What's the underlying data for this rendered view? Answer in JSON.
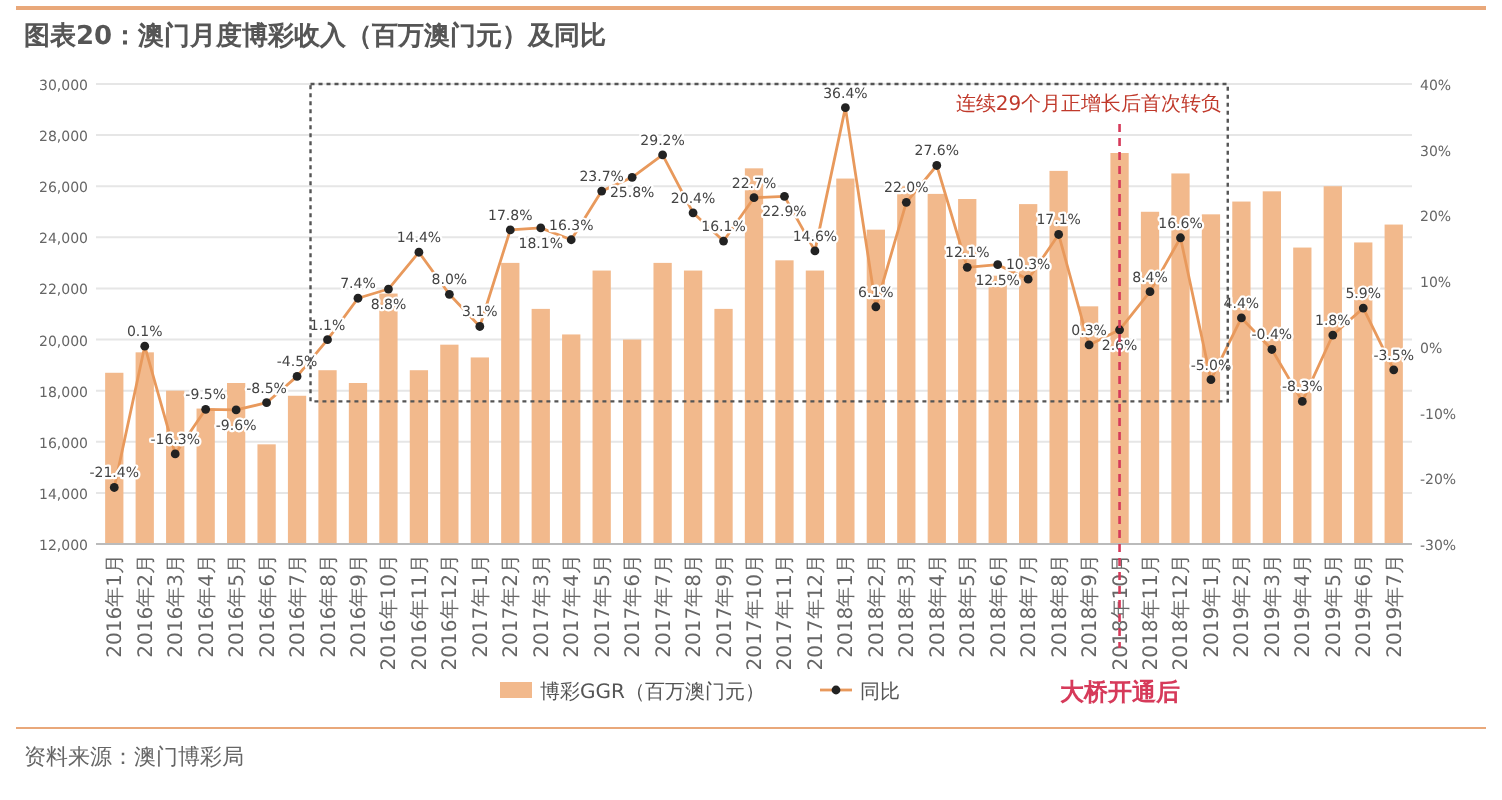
{
  "chart_data": {
    "type": "bar",
    "title": "图表20：澳门月度博彩收入（百万澳门元）及同比",
    "categories": [
      "2016年1月",
      "2016年2月",
      "2016年3月",
      "2016年4月",
      "2016年5月",
      "2016年6月",
      "2016年7月",
      "2016年8月",
      "2016年9月",
      "2016年10月",
      "2016年11月",
      "2016年12月",
      "2017年1月",
      "2017年2月",
      "2017年3月",
      "2017年4月",
      "2017年5月",
      "2017年6月",
      "2017年7月",
      "2017年8月",
      "2017年9月",
      "2017年10月",
      "2017年11月",
      "2017年12月",
      "2018年1月",
      "2018年2月",
      "2018年3月",
      "2018年4月",
      "2018年5月",
      "2018年6月",
      "2018年7月",
      "2018年8月",
      "2018年9月",
      "2018年10月",
      "2018年11月",
      "2018年12月",
      "2019年1月",
      "2019年2月",
      "2019年3月",
      "2019年4月",
      "2019年5月",
      "2019年6月",
      "2019年7月"
    ],
    "series": [
      {
        "name": "博彩GGR（百万澳门元）",
        "color": "#f2b98c",
        "values": [
          18700,
          19500,
          18000,
          17300,
          18300,
          15900,
          17800,
          18800,
          18300,
          21800,
          18800,
          19800,
          19300,
          23000,
          21200,
          20200,
          22700,
          20000,
          23000,
          22700,
          21200,
          26700,
          23100,
          22700,
          26300,
          24300,
          26000,
          25700,
          25500,
          22500,
          25300,
          26600,
          21300,
          27300,
          25000,
          26500,
          24900,
          25400,
          25800,
          23600,
          26000,
          23800,
          24500
        ]
      },
      {
        "name": "同比",
        "type": "line",
        "axis": "y2",
        "color": "#e8995c",
        "marker": "circle",
        "values": [
          -21.4,
          0.1,
          -16.3,
          -9.5,
          -9.6,
          -8.5,
          -4.5,
          1.1,
          7.4,
          8.8,
          14.4,
          8.0,
          3.1,
          17.8,
          18.1,
          16.3,
          23.7,
          25.8,
          29.2,
          20.4,
          16.1,
          22.7,
          22.9,
          14.6,
          36.4,
          6.1,
          22.0,
          27.6,
          12.1,
          12.5,
          10.3,
          17.1,
          0.3,
          2.6,
          8.4,
          16.6,
          -5.0,
          4.4,
          -0.4,
          -8.3,
          1.8,
          5.9,
          -3.5
        ],
        "value_labels": [
          "-21.4%",
          "0.1%",
          "-16.3%",
          "-9.5%",
          "-9.6%",
          "-8.5%",
          "-4.5%",
          "1.1%",
          "7.4%",
          "8.8%",
          "14.4%",
          "8.0%",
          "3.1%",
          "17.8%",
          "18.1%",
          "16.3%",
          "23.7%",
          "25.8%",
          "29.2%",
          "20.4%",
          "16.1%",
          "22.7%",
          "22.9%",
          "14.6%",
          "36.4%",
          "6.1%",
          "22.0%",
          "27.6%",
          "12.1%",
          "12.5%",
          "10.3%",
          "17.1%",
          "0.3%",
          "2.6%",
          "8.4%",
          "16.6%",
          "-5.0%",
          "4.4%",
          "-0.4%",
          "-8.3%",
          "1.8%",
          "5.9%",
          "-3.5%"
        ]
      }
    ],
    "ylim": [
      12000,
      30000
    ],
    "yticks": [
      {
        "value": 12000,
        "label": "12,000"
      },
      {
        "value": 14000,
        "label": "14,000"
      },
      {
        "value": 16000,
        "label": "16,000"
      },
      {
        "value": 18000,
        "label": "18,000"
      },
      {
        "value": 20000,
        "label": "20,000"
      },
      {
        "value": 22000,
        "label": "22,000"
      },
      {
        "value": 24000,
        "label": "24,000"
      },
      {
        "value": 26000,
        "label": "26,000"
      },
      {
        "value": 28000,
        "label": "28,000"
      },
      {
        "value": 30000,
        "label": "30,000"
      }
    ],
    "y2lim": [
      -30,
      40
    ],
    "y2ticks": [
      {
        "value": -30,
        "label": "-30%"
      },
      {
        "value": -20,
        "label": "-20%"
      },
      {
        "value": -10,
        "label": "-10%"
      },
      {
        "value": 0,
        "label": "0%"
      },
      {
        "value": 10,
        "label": "10%"
      },
      {
        "value": 20,
        "label": "20%"
      },
      {
        "value": 30,
        "label": "30%"
      },
      {
        "value": 40,
        "label": "40%"
      }
    ],
    "grid": "y",
    "legend": "bottom",
    "ref_lines": [
      {
        "axis": "x",
        "value": "2018年10月",
        "label": "大桥开通后",
        "color": "#d63a5a",
        "line_style": "dashed"
      }
    ],
    "annotations": [
      "连续29个月正增长后首次转负",
      "资料来源：澳门博彩局"
    ]
  }
}
